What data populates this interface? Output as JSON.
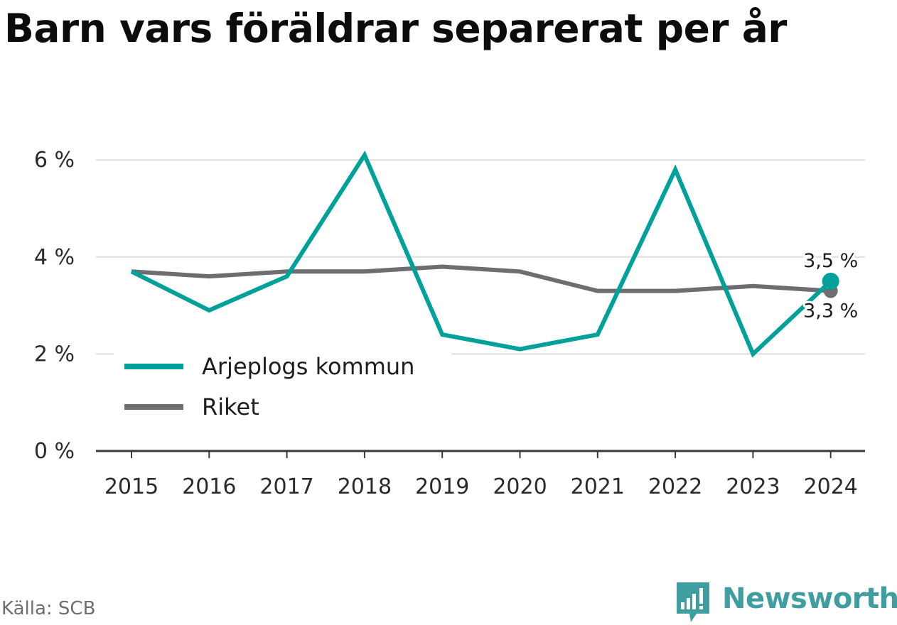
{
  "title": "Barn vars föräldrar separerat per år",
  "source": "Källa: SCB",
  "brand": {
    "name": "Newsworthy",
    "logo_icon": "bar-chart-speech-bubble-icon",
    "color": "#3f9fa0"
  },
  "chart_data": {
    "type": "line",
    "title": "Barn vars föräldrar separerat per år",
    "xlabel": "",
    "ylabel": "",
    "x": [
      "2015",
      "2016",
      "2017",
      "2018",
      "2019",
      "2020",
      "2021",
      "2022",
      "2023",
      "2024"
    ],
    "ylim": [
      0,
      6.6
    ],
    "y_ticks": [
      0,
      2,
      4,
      6
    ],
    "y_tick_labels": [
      "0 %",
      "2 %",
      "4 %",
      "6 %"
    ],
    "grid": "horizontal",
    "legend_position": "lower-left",
    "series": [
      {
        "name": "Arjeplogs kommun",
        "color": "#00a19a",
        "values": [
          3.7,
          2.9,
          3.6,
          6.1,
          2.4,
          2.1,
          2.4,
          5.8,
          2.0,
          3.5
        ],
        "end_label": "3,5 %",
        "end_marker": true
      },
      {
        "name": "Riket",
        "color": "#6e6d72",
        "values": [
          3.7,
          3.6,
          3.7,
          3.7,
          3.8,
          3.7,
          3.3,
          3.3,
          3.4,
          3.3
        ],
        "end_label": "3,3 %",
        "end_marker": true
      }
    ]
  }
}
